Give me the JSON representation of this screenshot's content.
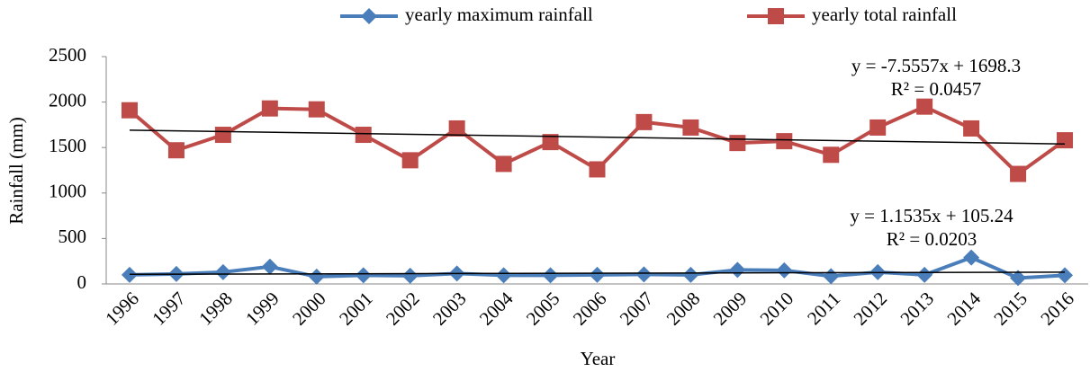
{
  "chart_data": {
    "type": "line",
    "y_label": "Rainfall (mm)",
    "x_label": "Year",
    "categories": [
      "1996",
      "1997",
      "1998",
      "1999",
      "2000",
      "2001",
      "2002",
      "2003",
      "2004",
      "2005",
      "2006",
      "2007",
      "2008",
      "2009",
      "2010",
      "2011",
      "2012",
      "2013",
      "2014",
      "2015",
      "2016"
    ],
    "series": [
      {
        "name": "yearly maximum rainfall",
        "color": "#4a7ebb",
        "marker": "diamond",
        "values": [
          100,
          110,
          130,
          190,
          80,
          95,
          90,
          115,
          95,
          95,
          100,
          105,
          100,
          155,
          150,
          85,
          130,
          100,
          290,
          65,
          95
        ]
      },
      {
        "name": "yearly total rainfall",
        "color": "#be4b48",
        "marker": "square",
        "values": [
          1910,
          1470,
          1640,
          1930,
          1920,
          1640,
          1360,
          1710,
          1320,
          1560,
          1260,
          1780,
          1720,
          1550,
          1570,
          1420,
          1720,
          1950,
          1710,
          1210,
          1580
        ]
      }
    ],
    "trendlines": [
      {
        "equation": "y = 1.1535x + 105.24",
        "r2": "R² = 0.0203",
        "slope": 1.1535,
        "intercept": 105.24
      },
      {
        "equation": "y = -7.5557x + 1698.3",
        "r2": "R² = 0.0457",
        "slope": -7.5557,
        "intercept": 1698.3
      }
    ],
    "ylim": [
      0,
      2500
    ],
    "yticks": [
      0,
      500,
      1000,
      1500,
      2000,
      2500
    ],
    "grid": false
  }
}
